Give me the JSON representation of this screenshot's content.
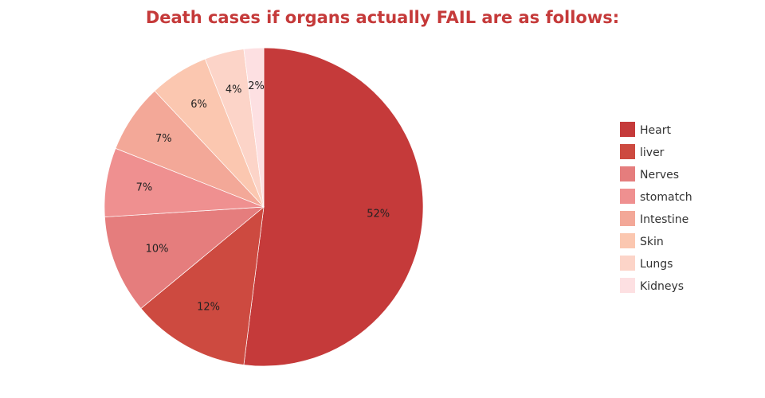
{
  "chart_data": {
    "type": "pie",
    "title": "Death cases if organs actually FAIL are as follows:",
    "categories": [
      "Heart",
      "liver",
      "Nerves",
      "stomatch",
      "Intestine",
      "Skin",
      "Lungs",
      "Kidneys"
    ],
    "values": [
      52,
      12,
      10,
      7,
      7,
      6,
      4,
      2
    ],
    "data_labels": [
      "52%",
      "12%",
      "10%",
      "7%",
      "7%",
      "6%",
      "4%",
      "2%"
    ],
    "colors": [
      "#c53a3a",
      "#cd4a40",
      "#e57d7d",
      "#ef9090",
      "#f3a898",
      "#fbc7b0",
      "#fcd4c8",
      "#fde0e2"
    ],
    "legend_position": "right"
  }
}
